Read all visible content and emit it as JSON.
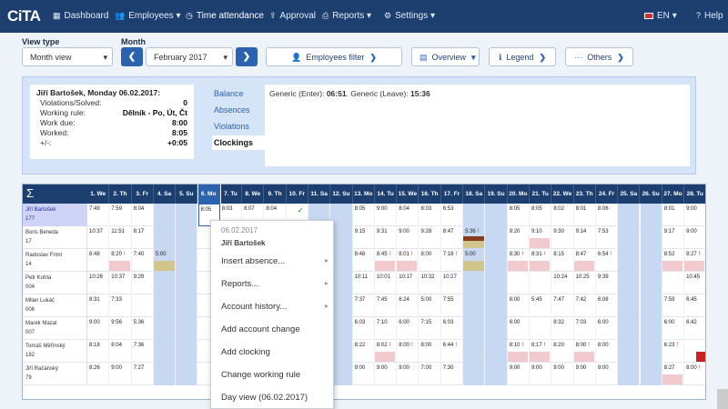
{
  "nav": {
    "logo": "CiTA",
    "items": [
      {
        "icon": "grid-icon",
        "glyph": "▦",
        "label": "Dashboard",
        "caret": false
      },
      {
        "icon": "users-icon",
        "glyph": "👥",
        "label": "Employees",
        "caret": true
      },
      {
        "icon": "clock-icon",
        "glyph": "⏲",
        "label": "Time attendance",
        "caret": false
      },
      {
        "icon": "approval-icon",
        "glyph": "⬆",
        "label": "Approval",
        "caret": false
      },
      {
        "icon": "print-icon",
        "glyph": "🖶",
        "label": "Reports",
        "caret": true
      },
      {
        "icon": "gear-icon",
        "glyph": "⚙",
        "label": "Settings",
        "caret": true
      }
    ],
    "language": "EN",
    "help": "Help"
  },
  "controls": {
    "view_type_label": "View type",
    "view_type_value": "Month view",
    "month_label": "Month",
    "month_value": "February 2017",
    "employees_filter": "Employees filter",
    "overview": "Overview",
    "legend": "Legend",
    "others": "Others"
  },
  "info": {
    "title": "Jiří Bartošek, Monday 06.02.2017:",
    "rows": [
      {
        "label": "Violations/Solved:",
        "value": "0"
      },
      {
        "label": "Working rule:",
        "value": "Dělník - Po, Út, Čt"
      },
      {
        "label": "Work due:",
        "value": "8:00"
      },
      {
        "label": "Worked:",
        "value": "8:05"
      },
      {
        "label": "+/-:",
        "value": "+0:05"
      }
    ]
  },
  "tabs": [
    "Balance",
    "Absences",
    "Violations",
    "Clockings"
  ],
  "active_tab": "Clockings",
  "detail": {
    "pre1": "Generic (Enter): ",
    "enter": "06:51",
    "pre2": ". Generic (Leave): ",
    "leave": "15:36"
  },
  "grid": {
    "sigma": "Σ",
    "days": [
      "1. We",
      "2. Th",
      "3. Fr",
      "4. Sa",
      "5. Su",
      "6. Mo",
      "7. Tu",
      "8. We",
      "9. Th",
      "10. Fr",
      "11. Sa",
      "12. Su",
      "13. Mo",
      "14. Tu",
      "15. We",
      "16. Th",
      "17. Fr",
      "18. Sa",
      "19. Su",
      "20. Mo",
      "21. Tu",
      "22. We",
      "23. Th",
      "24. Fr",
      "25. Sa",
      "26. Su",
      "27. Mo",
      "28. Tu"
    ],
    "employees": [
      {
        "name": "Jiří Bartošek",
        "code": "177",
        "cells": [
          "7:49",
          "7:59",
          "8:04",
          "",
          "",
          "8:05",
          "8:03",
          "8:07",
          "8:04",
          "✓",
          "",
          "",
          "8:05",
          "9:00",
          "8:04",
          "8:03",
          "6:53",
          "",
          "",
          "8:05",
          "8:05",
          "8:02",
          "8:01",
          "8:06",
          "",
          "",
          "8:01",
          "9:00"
        ]
      },
      {
        "name": "Boris Beneda",
        "code": "17",
        "cells": [
          "10:37",
          "11:51",
          "8:17",
          "",
          "",
          "",
          "",
          "",
          "",
          "",
          "",
          "",
          "9:15",
          "9:31",
          "9:00",
          "9:28",
          "8:47",
          "5:36",
          "",
          "9:20",
          "9:10",
          "9:30",
          "9:14",
          "7:53",
          "",
          "",
          "9:17",
          "9:00"
        ]
      },
      {
        "name": "Radoslav Friml",
        "code": "14",
        "cells": [
          "8:48",
          "8:20",
          "7:40",
          "5:00",
          "",
          "",
          "",
          "",
          "",
          "",
          "",
          "",
          "8:48",
          "8:45",
          "8:01",
          "8:00",
          "7:18",
          "5:00",
          "",
          "8:30",
          "8:31",
          "8:15",
          "8:47",
          "6:54",
          "",
          "",
          "8:52",
          "8:27"
        ]
      },
      {
        "name": "Petr Kotrla",
        "code": "004",
        "cells": [
          "10:26",
          "10:37",
          "9:29",
          "",
          "",
          "",
          "",
          "",
          "",
          "",
          "",
          "",
          "10:11",
          "10:01",
          "10:17",
          "10:32",
          "10:27",
          "",
          "",
          "",
          "",
          "10:24",
          "10:25",
          "9:39",
          "",
          "",
          "",
          "10:45"
        ]
      },
      {
        "name": "Milan Lukáč",
        "code": "006",
        "cells": [
          "8:31",
          "7:33",
          "",
          "",
          "",
          "",
          "",
          "",
          "",
          "",
          "",
          "",
          "7:37",
          "7:45",
          "6:24",
          "5:00",
          "7:55",
          "",
          "",
          "8:00",
          "5:45",
          "7:47",
          "7:42",
          "6:08",
          "",
          "",
          "7:59",
          "6:45"
        ]
      },
      {
        "name": "Marek Mazal",
        "code": "007",
        "cells": [
          "9:00",
          "9:56",
          "5:36",
          "",
          "",
          "",
          "",
          "",
          "",
          "",
          "",
          "",
          "6:03",
          "7:10",
          "6:00",
          "7:15",
          "6:03",
          "",
          "",
          "6:00",
          "",
          "8:32",
          "7:03",
          "6:00",
          "",
          "",
          "6:00",
          "6:42"
        ]
      },
      {
        "name": "Tomáš Měřínský",
        "code": "182",
        "cells": [
          "8:18",
          "8:04",
          "7:36",
          "",
          "",
          "",
          "",
          "",
          "",
          "",
          "",
          "",
          "8:22",
          "8:02",
          "8:00",
          "8:00",
          "6:44",
          "",
          "",
          "8:10",
          "8:17",
          "8:20",
          "8:00",
          "8:00",
          "",
          "",
          "6:23",
          ""
        ]
      },
      {
        "name": "Jiří Račanský",
        "code": "79",
        "cells": [
          "8:26",
          "9:00",
          "7:27",
          "",
          "",
          "",
          "",
          "",
          "",
          "",
          "",
          "",
          "9:00",
          "9:00",
          "9:00",
          "7:00",
          "7:30",
          "",
          "",
          "9:00",
          "9:00",
          "9:00",
          "9:00",
          "9:00",
          "",
          "",
          "8:27",
          "8:00"
        ]
      }
    ]
  },
  "context_menu": {
    "date": "06.02.2017",
    "name": "Jiří Bartošek",
    "items": [
      {
        "label": "Insert absence...",
        "sub": true
      },
      {
        "label": "Reports...",
        "sub": true
      },
      {
        "label": "Account history...",
        "sub": true
      },
      {
        "label": "Add account change",
        "sub": false
      },
      {
        "label": "Add clocking",
        "sub": false
      },
      {
        "label": "Change working rule",
        "sub": false
      },
      {
        "label": "Day view (06.02.2017)",
        "sub": false
      }
    ]
  },
  "colors": {
    "navbar": "#1d3f70",
    "accent": "#2b63b0",
    "weekend": "#c7d9f2",
    "violation": "#f2c9cc",
    "absence": "#d2c58c"
  }
}
